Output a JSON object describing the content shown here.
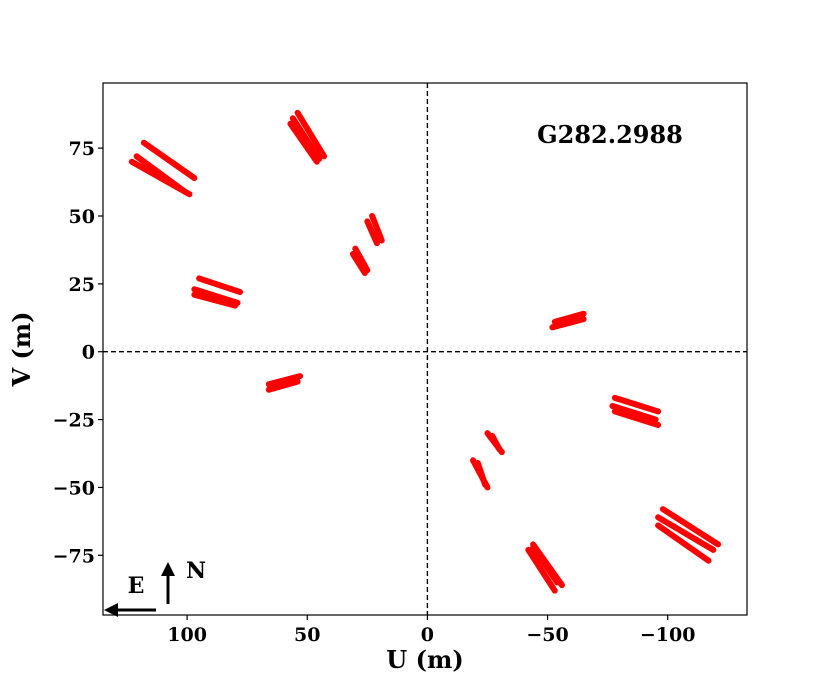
{
  "chart_data": {
    "type": "scatter",
    "title": "",
    "annotation": "G282.2988",
    "xlabel": "U (m)",
    "ylabel": "V (m)",
    "xlim": [
      135,
      -133
    ],
    "ylim": [
      -97,
      99
    ],
    "x_ticks": [
      100,
      50,
      0,
      -50,
      -100
    ],
    "x_tick_labels": [
      "100",
      "50",
      "0",
      "−50",
      "−100"
    ],
    "y_ticks": [
      75,
      50,
      25,
      0,
      -25,
      -50,
      -75
    ],
    "y_tick_labels": [
      "75",
      "50",
      "25",
      "0",
      "−25",
      "−50",
      "−75"
    ],
    "grid": false,
    "zero_lines": "dashed",
    "marker_color": "#ff0000",
    "compass": {
      "east": "E",
      "north": "N"
    },
    "tracks": [
      {
        "x1": 118,
        "y1": 77,
        "x2": 97,
        "y2": 64
      },
      {
        "x1": 121,
        "y1": 72,
        "x2": 101,
        "y2": 59
      },
      {
        "x1": 123,
        "y1": 70,
        "x2": 99,
        "y2": 58
      },
      {
        "x1": 54,
        "y1": 88,
        "x2": 43,
        "y2": 72
      },
      {
        "x1": 56,
        "y1": 86,
        "x2": 45,
        "y2": 71
      },
      {
        "x1": 57,
        "y1": 84,
        "x2": 46,
        "y2": 70
      },
      {
        "x1": 23,
        "y1": 50,
        "x2": 19,
        "y2": 41
      },
      {
        "x1": 25,
        "y1": 48,
        "x2": 21,
        "y2": 40
      },
      {
        "x1": 30,
        "y1": 38,
        "x2": 25,
        "y2": 30
      },
      {
        "x1": 31,
        "y1": 36,
        "x2": 26,
        "y2": 29
      },
      {
        "x1": 95,
        "y1": 27,
        "x2": 78,
        "y2": 22
      },
      {
        "x1": 97,
        "y1": 23,
        "x2": 79,
        "y2": 18
      },
      {
        "x1": 97,
        "y1": 21,
        "x2": 80,
        "y2": 17
      },
      {
        "x1": 53,
        "y1": -9,
        "x2": 66,
        "y2": -12
      },
      {
        "x1": 54,
        "y1": -11,
        "x2": 66,
        "y2": -14
      },
      {
        "x1": -53,
        "y1": 11,
        "x2": -65,
        "y2": 14
      },
      {
        "x1": -52,
        "y1": 9,
        "x2": -65,
        "y2": 12
      },
      {
        "x1": -78,
        "y1": -17,
        "x2": -96,
        "y2": -22
      },
      {
        "x1": -77,
        "y1": -20,
        "x2": -95,
        "y2": -25
      },
      {
        "x1": -78,
        "y1": -22,
        "x2": -96,
        "y2": -27
      },
      {
        "x1": -25,
        "y1": -30,
        "x2": -31,
        "y2": -37
      },
      {
        "x1": -27,
        "y1": -31,
        "x2": -30,
        "y2": -36
      },
      {
        "x1": -19,
        "y1": -40,
        "x2": -25,
        "y2": -50
      },
      {
        "x1": -21,
        "y1": -41,
        "x2": -24,
        "y2": -49
      },
      {
        "x1": -44,
        "y1": -71,
        "x2": -56,
        "y2": -86
      },
      {
        "x1": -42,
        "y1": -73,
        "x2": -53,
        "y2": -88
      },
      {
        "x1": -44,
        "y1": -72,
        "x2": -54,
        "y2": -85
      },
      {
        "x1": -98,
        "y1": -58,
        "x2": -121,
        "y2": -71
      },
      {
        "x1": -96,
        "y1": -61,
        "x2": -119,
        "y2": -73
      },
      {
        "x1": -96,
        "y1": -64,
        "x2": -117,
        "y2": -77
      }
    ]
  }
}
